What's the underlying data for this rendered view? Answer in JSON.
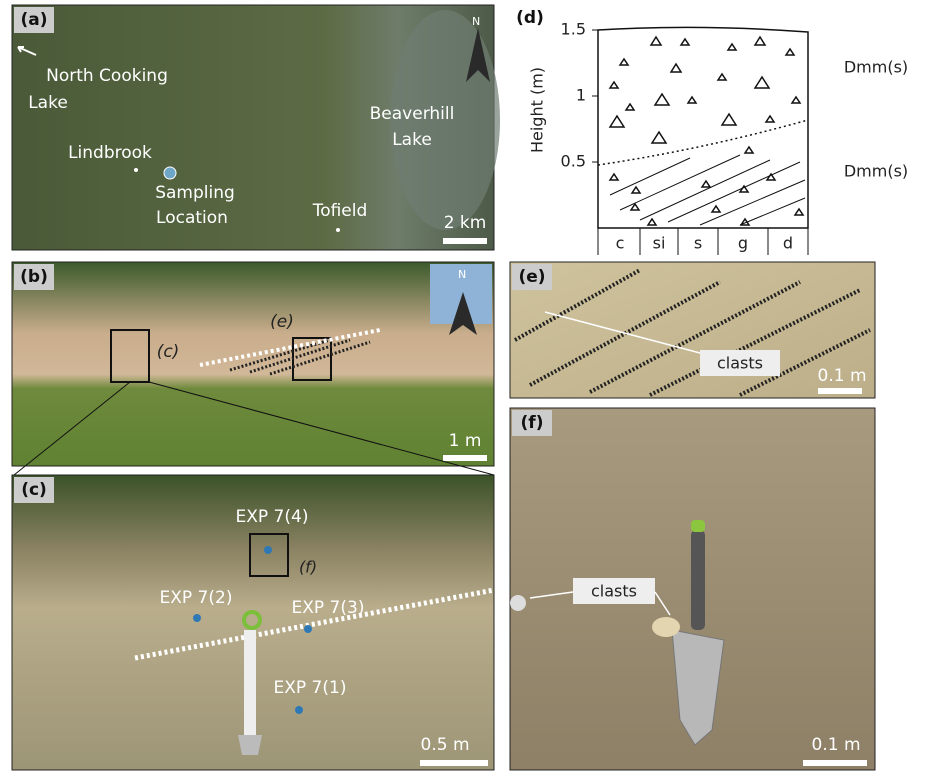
{
  "panel_a": {
    "label": "(a)",
    "places": [
      "North Cooking",
      "Lake",
      "Lindbrook",
      "Sampling",
      "Location",
      "Beaverhill",
      "Lake",
      "Tofield"
    ],
    "north": "N",
    "scale": "2 km"
  },
  "panel_b": {
    "label": "(b)",
    "insets": [
      "(c)",
      "(e)"
    ],
    "north": "N",
    "scale": "1 m"
  },
  "panel_c": {
    "label": "(c)",
    "samples": [
      "EXP 7(4)",
      "EXP 7(2)",
      "EXP 7(3)",
      "EXP 7(1)"
    ],
    "inset": "(f)",
    "scale": "0.5 m"
  },
  "panel_d": {
    "label": "(d)",
    "y_label": "Height (m)",
    "ylim": [
      0,
      1.5
    ],
    "yticks": [
      0.5,
      1,
      1.5
    ],
    "grain_sizes": [
      "c",
      "si",
      "s",
      "g",
      "d"
    ],
    "units": [
      "Dmm(s)",
      "Dmm(s)"
    ]
  },
  "panel_e": {
    "label": "(e)",
    "note": "clasts",
    "scale": "0.1 m"
  },
  "panel_f": {
    "label": "(f)",
    "note": "clasts",
    "scale": "0.1 m"
  }
}
